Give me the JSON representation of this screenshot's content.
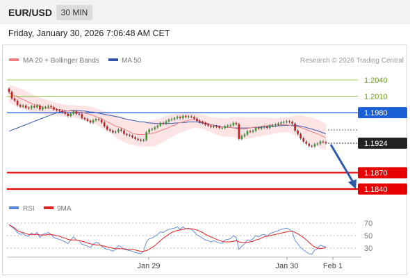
{
  "header": {
    "symbol": "EUR/USD",
    "timeframe": "30 MIN",
    "timestamp": "Friday, January 30, 2026 7:06:48 AM CET"
  },
  "legend": {
    "bollinger": "MA 20 + Bollinger Bands",
    "ma50": "MA 50",
    "rsi": "RSI",
    "rsi_ma": "9MA"
  },
  "copyright": "Research © 2026 Trading Central",
  "colors": {
    "bull": "#2e9e2e",
    "bear": "#c02020",
    "wick": "#333333",
    "band_fill": "#fde4e4",
    "ma20": "#f08080",
    "ma50": "#3355aa",
    "level_resistance": "#99cc55",
    "pivot": "#1a5fd6",
    "support": "#e60000",
    "price_tag": "#222222",
    "arrow": "#2b5ba8",
    "rsi": "#5580d8",
    "rsi_ma": "#e02020"
  },
  "chart_data": [
    {
      "type": "candlestick",
      "title": "EUR/USD 30 MIN",
      "x_labels": [
        "Jan 29",
        "Jan 30",
        "Feb 1"
      ],
      "ylim": [
        1.183,
        1.2063
      ],
      "price_levels": [
        {
          "value": 1.204,
          "label": "1.2040",
          "kind": "resistance"
        },
        {
          "value": 1.201,
          "label": "1.2010",
          "kind": "resistance"
        },
        {
          "value": 1.198,
          "label": "1.1980",
          "kind": "pivot"
        },
        {
          "value": 1.1924,
          "label": "1.1924",
          "kind": "last-price"
        },
        {
          "value": 1.187,
          "label": "1.1870",
          "kind": "support"
        },
        {
          "value": 1.184,
          "label": "1.1840",
          "kind": "support"
        }
      ],
      "close": [
        1.2018,
        1.2006,
        1.2002,
        1.1994,
        1.1991,
        1.1993,
        1.1989,
        1.1988,
        1.1992,
        1.199,
        1.1993,
        1.1986,
        1.1989,
        1.199,
        1.1992,
        1.199,
        1.1986,
        1.1984,
        1.1983,
        1.1981,
        1.1978,
        1.1974,
        1.1978,
        1.1982,
        1.1978,
        1.1977,
        1.197,
        1.1968,
        1.1965,
        1.1962,
        1.1966,
        1.1968,
        1.1967,
        1.1962,
        1.1955,
        1.1949,
        1.1947,
        1.1944,
        1.1945,
        1.1949,
        1.1947,
        1.1941,
        1.1939,
        1.1938,
        1.1935,
        1.1932,
        1.193,
        1.1929,
        1.193,
        1.1944,
        1.1949,
        1.195,
        1.1953,
        1.1956,
        1.1961,
        1.196,
        1.1964,
        1.1967,
        1.1968,
        1.197,
        1.1972,
        1.197,
        1.1974,
        1.1972,
        1.1973,
        1.1972,
        1.1969,
        1.1965,
        1.1963,
        1.1961,
        1.1958,
        1.1956,
        1.1954,
        1.1955,
        1.1954,
        1.1952,
        1.1952,
        1.1955,
        1.1956,
        1.1957,
        1.1961,
        1.1959,
        1.1932,
        1.1937,
        1.194,
        1.1946,
        1.1945,
        1.1947,
        1.1952,
        1.1951,
        1.1953,
        1.1954,
        1.1952,
        1.1956,
        1.1957,
        1.1958,
        1.196,
        1.1962,
        1.1963,
        1.1964,
        1.1963,
        1.196,
        1.1947,
        1.1941,
        1.1933,
        1.1927,
        1.1923,
        1.1919,
        1.1918,
        1.1922,
        1.1923,
        1.1927,
        1.1926,
        1.1924
      ],
      "ma20": [
        1.2016,
        1.2014,
        1.2011,
        1.2009,
        1.2006,
        1.2004,
        1.2002,
        1.1999,
        1.1997,
        1.1995,
        1.1994,
        1.1992,
        1.1991,
        1.1989,
        1.1988,
        1.1988,
        1.1987,
        1.1986,
        1.1986,
        1.1985,
        1.1984,
        1.1983,
        1.1983,
        1.1983,
        1.1982,
        1.1981,
        1.1981,
        1.1979,
        1.1978,
        1.1976,
        1.1975,
        1.1973,
        1.1971,
        1.1969,
        1.1966,
        1.1963,
        1.1961,
        1.1958,
        1.1955,
        1.1954,
        1.1952,
        1.195,
        1.1947,
        1.1945,
        1.1942,
        1.1941,
        1.194,
        1.194,
        1.194,
        1.1941,
        1.1941,
        1.1942,
        1.1943,
        1.1945,
        1.1947,
        1.1949,
        1.1951,
        1.1953,
        1.1955,
        1.1957,
        1.196,
        1.1962,
        1.1963,
        1.1965,
        1.1966,
        1.1967,
        1.1967,
        1.1966,
        1.1965,
        1.1963,
        1.1962,
        1.196,
        1.1958,
        1.1956,
        1.1955,
        1.1954,
        1.1954,
        1.1953,
        1.1953,
        1.1953,
        1.1952,
        1.1951,
        1.195,
        1.195,
        1.195,
        1.1951,
        1.1952,
        1.1953,
        1.1953,
        1.1954,
        1.1955,
        1.1956,
        1.1956,
        1.1957,
        1.1957,
        1.1958,
        1.1958,
        1.1958,
        1.1958,
        1.1958,
        1.1957,
        1.1956,
        1.1955,
        1.1954,
        1.1953,
        1.1951,
        1.1949,
        1.1947,
        1.1945,
        1.1943,
        1.1941,
        1.1939,
        1.1936,
        1.1934
      ],
      "band_upper": [
        1.2032,
        1.203,
        1.2028,
        1.2026,
        1.2024,
        1.2022,
        1.202,
        1.2017,
        1.2014,
        1.2012,
        1.201,
        1.2008,
        1.2006,
        1.2004,
        1.2002,
        1.2,
        1.1999,
        1.1998,
        1.1997,
        1.1996,
        1.1995,
        1.1994,
        1.1994,
        1.1994,
        1.1993,
        1.1993,
        1.1993,
        1.1993,
        1.1992,
        1.1991,
        1.199,
        1.1988,
        1.1986,
        1.1984,
        1.1982,
        1.198,
        1.1978,
        1.1977,
        1.1976,
        1.1975,
        1.1973,
        1.1971,
        1.1969,
        1.1967,
        1.1965,
        1.1963,
        1.1962,
        1.1962,
        1.1963,
        1.1964,
        1.1965,
        1.1966,
        1.1967,
        1.1968,
        1.197,
        1.1972,
        1.1974,
        1.1975,
        1.1977,
        1.1978,
        1.1979,
        1.198,
        1.1981,
        1.1981,
        1.1981,
        1.1981,
        1.198,
        1.1979,
        1.1978,
        1.1976,
        1.1975,
        1.1973,
        1.1972,
        1.1971,
        1.1971,
        1.197,
        1.197,
        1.197,
        1.197,
        1.1971,
        1.1972,
        1.1972,
        1.1972,
        1.1972,
        1.1971,
        1.1971,
        1.1971,
        1.1971,
        1.1971,
        1.1971,
        1.1971,
        1.1971,
        1.1971,
        1.1971,
        1.197,
        1.197,
        1.197,
        1.1971,
        1.1971,
        1.1971,
        1.1972,
        1.1973,
        1.1974,
        1.1975,
        1.1975,
        1.1974,
        1.1973,
        1.1972,
        1.1971,
        1.1969,
        1.1967,
        1.1965,
        1.1962,
        1.196
      ],
      "band_lower": [
        1.1998,
        1.1996,
        1.1993,
        1.1991,
        1.1989,
        1.1987,
        1.1985,
        1.1982,
        1.198,
        1.1979,
        1.1978,
        1.1977,
        1.1977,
        1.1976,
        1.1976,
        1.1975,
        1.1975,
        1.1975,
        1.1975,
        1.1974,
        1.1973,
        1.1973,
        1.1972,
        1.1971,
        1.197,
        1.1969,
        1.1968,
        1.1966,
        1.1964,
        1.1962,
        1.196,
        1.1958,
        1.1955,
        1.1952,
        1.1949,
        1.1946,
        1.1943,
        1.1939,
        1.1935,
        1.1932,
        1.1929,
        1.1926,
        1.1924,
        1.1922,
        1.1921,
        1.192,
        1.1919,
        1.1918,
        1.1918,
        1.1918,
        1.1918,
        1.1918,
        1.1919,
        1.1921,
        1.1924,
        1.1926,
        1.1929,
        1.1932,
        1.1935,
        1.1938,
        1.1941,
        1.1943,
        1.1945,
        1.1947,
        1.1949,
        1.1951,
        1.1952,
        1.1952,
        1.1951,
        1.195,
        1.1948,
        1.1946,
        1.1944,
        1.1942,
        1.194,
        1.1938,
        1.1937,
        1.1936,
        1.1936,
        1.1936,
        1.1935,
        1.1934,
        1.1932,
        1.1931,
        1.1931,
        1.1932,
        1.1933,
        1.1934,
        1.1935,
        1.1936,
        1.1937,
        1.1938,
        1.1939,
        1.194,
        1.1941,
        1.1942,
        1.1943,
        1.1944,
        1.1944,
        1.1944,
        1.1943,
        1.1941,
        1.1938,
        1.1935,
        1.1932,
        1.193,
        1.1927,
        1.1925,
        1.1922,
        1.192,
        1.1918,
        1.1915,
        1.1913,
        1.1911
      ],
      "ma50": [
        1.1946,
        1.1948,
        1.195,
        1.1952,
        1.1954,
        1.1956,
        1.1958,
        1.196,
        1.1962,
        1.1964,
        1.1966,
        1.1968,
        1.197,
        1.1972,
        1.1974,
        1.1976,
        1.1978,
        1.198,
        1.1981,
        1.1982,
        1.1983,
        1.1983,
        1.1984,
        1.1984,
        1.1984,
        1.1984,
        1.1983,
        1.1983,
        1.1982,
        1.1981,
        1.1981,
        1.198,
        1.1979,
        1.1978,
        1.1977,
        1.1976,
        1.1975,
        1.1974,
        1.1973,
        1.1972,
        1.1971,
        1.1969,
        1.1968,
        1.1967,
        1.1966,
        1.1965,
        1.1964,
        1.1963,
        1.1963,
        1.1962,
        1.1961,
        1.1961,
        1.196,
        1.196,
        1.196,
        1.196,
        1.196,
        1.196,
        1.196,
        1.1961,
        1.1961,
        1.1962,
        1.1962,
        1.1962,
        1.1963,
        1.1963,
        1.1963,
        1.1963,
        1.1962,
        1.1961,
        1.196,
        1.1959,
        1.1958,
        1.1957,
        1.1956,
        1.1955,
        1.1954,
        1.1954,
        1.1953,
        1.1953,
        1.1952,
        1.1952,
        1.1952,
        1.1952,
        1.1952,
        1.1952,
        1.1952,
        1.1953,
        1.1953,
        1.1953,
        1.1953,
        1.1954,
        1.1954,
        1.1955,
        1.1955,
        1.1955,
        1.1956,
        1.1956,
        1.1957,
        1.1957,
        1.1957,
        1.1957,
        1.1957,
        1.1956,
        1.1955,
        1.1954,
        1.1953,
        1.1951,
        1.195,
        1.1948,
        1.1947,
        1.1945,
        1.1943,
        1.1941
      ],
      "rsi_ylim": [
        20,
        80
      ],
      "rsi_levels": [
        70,
        50,
        30
      ],
      "rsi": [
        68,
        64,
        60,
        55,
        52,
        53,
        50,
        49,
        54,
        51,
        55,
        47,
        52,
        53,
        55,
        52,
        47,
        45,
        44,
        42,
        40,
        37,
        43,
        48,
        43,
        42,
        36,
        35,
        33,
        31,
        36,
        39,
        38,
        33,
        30,
        28,
        27,
        25,
        28,
        34,
        32,
        28,
        27,
        26,
        25,
        23,
        22,
        21,
        25,
        40,
        45,
        46,
        49,
        52,
        56,
        55,
        58,
        60,
        61,
        62,
        64,
        60,
        64,
        61,
        62,
        60,
        56,
        51,
        49,
        46,
        43,
        42,
        40,
        42,
        40,
        38,
        38,
        43,
        44,
        45,
        50,
        47,
        28,
        33,
        37,
        43,
        42,
        45,
        50,
        48,
        51,
        52,
        49,
        53,
        55,
        56,
        58,
        60,
        61,
        62,
        60,
        56,
        42,
        37,
        31,
        27,
        24,
        21,
        20,
        27,
        29,
        35,
        33,
        32
      ],
      "rsi_ma": [
        67,
        65,
        62,
        58,
        56,
        55,
        53,
        52,
        52,
        52,
        52,
        51,
        51,
        51,
        52,
        52,
        51,
        50,
        49,
        47,
        46,
        44,
        43,
        43,
        43,
        42,
        41,
        40,
        38,
        37,
        36,
        35,
        35,
        34,
        33,
        32,
        31,
        30,
        29,
        29,
        29,
        29,
        28,
        28,
        28,
        27,
        26,
        25,
        25,
        26,
        28,
        31,
        34,
        38,
        42,
        46,
        49,
        52,
        55,
        57,
        58,
        59,
        60,
        61,
        61,
        61,
        60,
        59,
        57,
        55,
        52,
        50,
        48,
        46,
        44,
        42,
        41,
        40,
        40,
        40,
        41,
        42,
        40,
        39,
        39,
        39,
        40,
        41,
        43,
        44,
        46,
        48,
        49,
        50,
        51,
        52,
        53,
        54,
        55,
        56,
        57,
        57,
        55,
        53,
        50,
        47,
        43,
        39,
        35,
        32,
        30,
        29,
        30,
        31
      ]
    }
  ]
}
